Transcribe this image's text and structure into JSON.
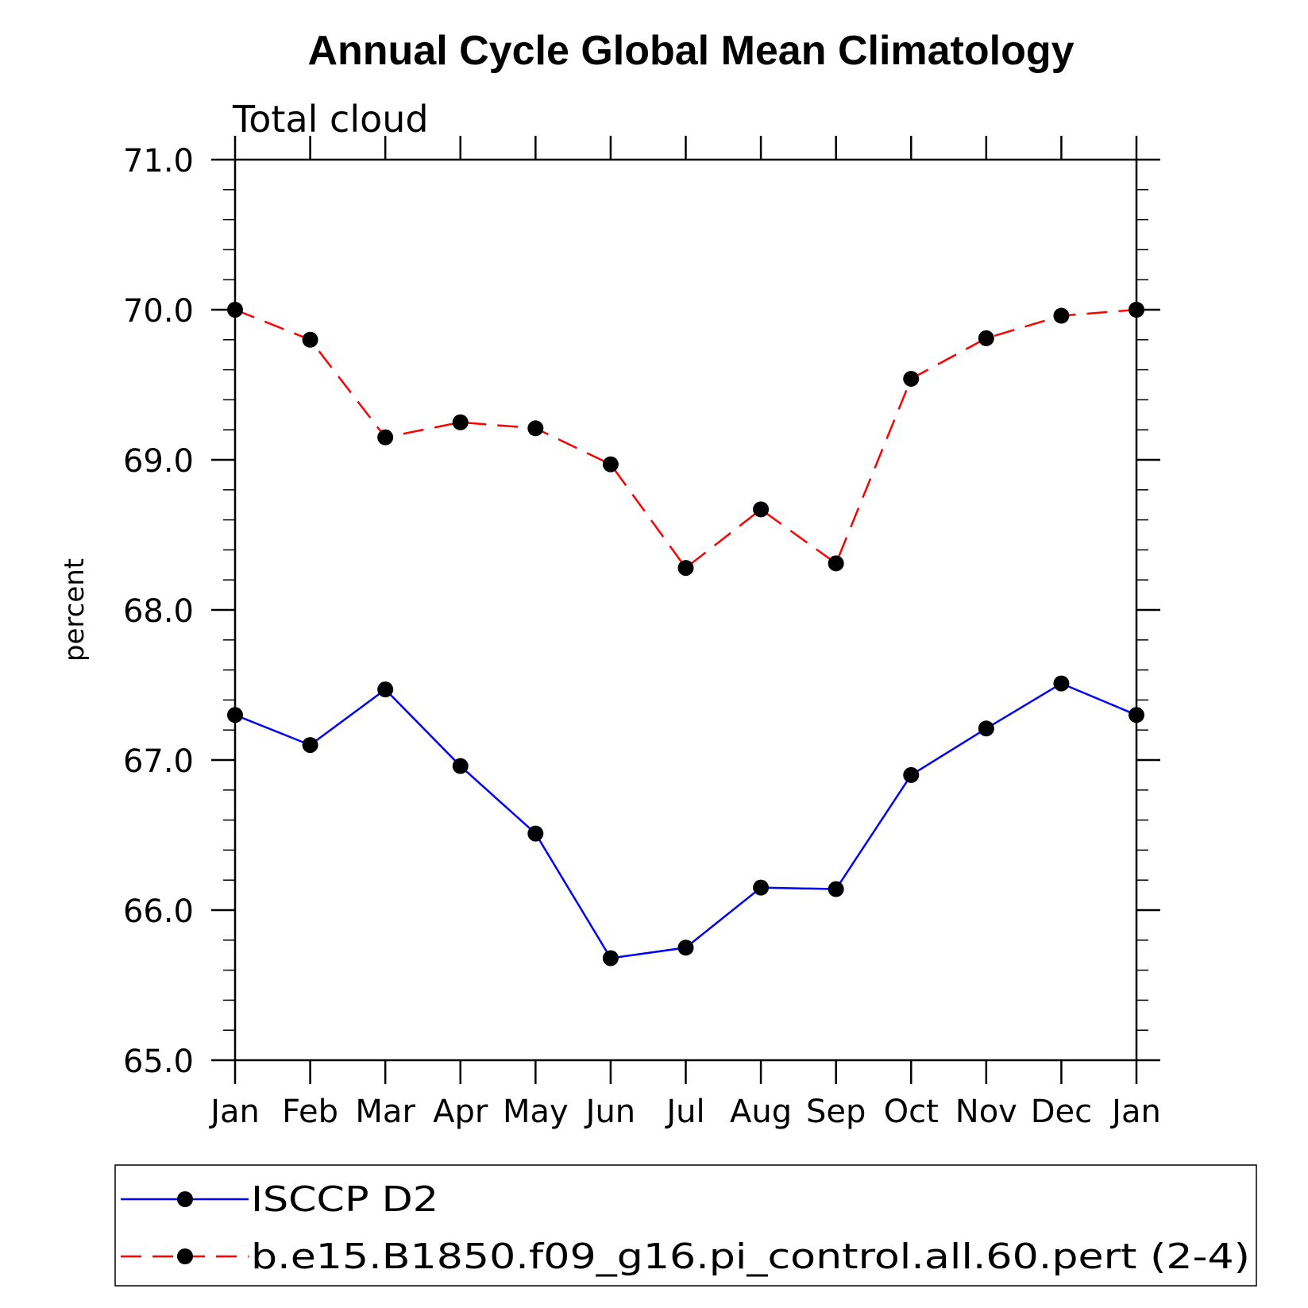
{
  "chart_data": {
    "type": "line",
    "title": "Annual Cycle Global Mean Climatology",
    "subtitle": "Total cloud",
    "ylabel": "percent",
    "xlabel": "",
    "ylim": [
      65.0,
      71.0
    ],
    "yticks": [
      "65.0",
      "66.0",
      "67.0",
      "68.0",
      "69.0",
      "70.0",
      "71.0"
    ],
    "categories": [
      "Jan",
      "Feb",
      "Mar",
      "Apr",
      "May",
      "Jun",
      "Jul",
      "Aug",
      "Sep",
      "Oct",
      "Nov",
      "Dec",
      "Jan"
    ],
    "grid": false,
    "legend_position": "bottom",
    "series": [
      {
        "name": "ISCCP D2",
        "color": "#0000ff",
        "dash": "solid",
        "marker": "filled-circle",
        "values": [
          67.3,
          67.1,
          67.47,
          66.96,
          66.51,
          65.68,
          65.75,
          66.15,
          66.14,
          66.9,
          67.21,
          67.51,
          67.3
        ]
      },
      {
        "name": "b.e15.B1850.f09_g16.pi_control.all.60.pert (2-4)",
        "color": "#ff0000",
        "dash": "dashed",
        "marker": "filled-circle",
        "values": [
          70.0,
          69.8,
          69.15,
          69.25,
          69.21,
          68.97,
          68.28,
          68.67,
          68.31,
          69.54,
          69.81,
          69.96,
          70.0
        ]
      }
    ]
  }
}
